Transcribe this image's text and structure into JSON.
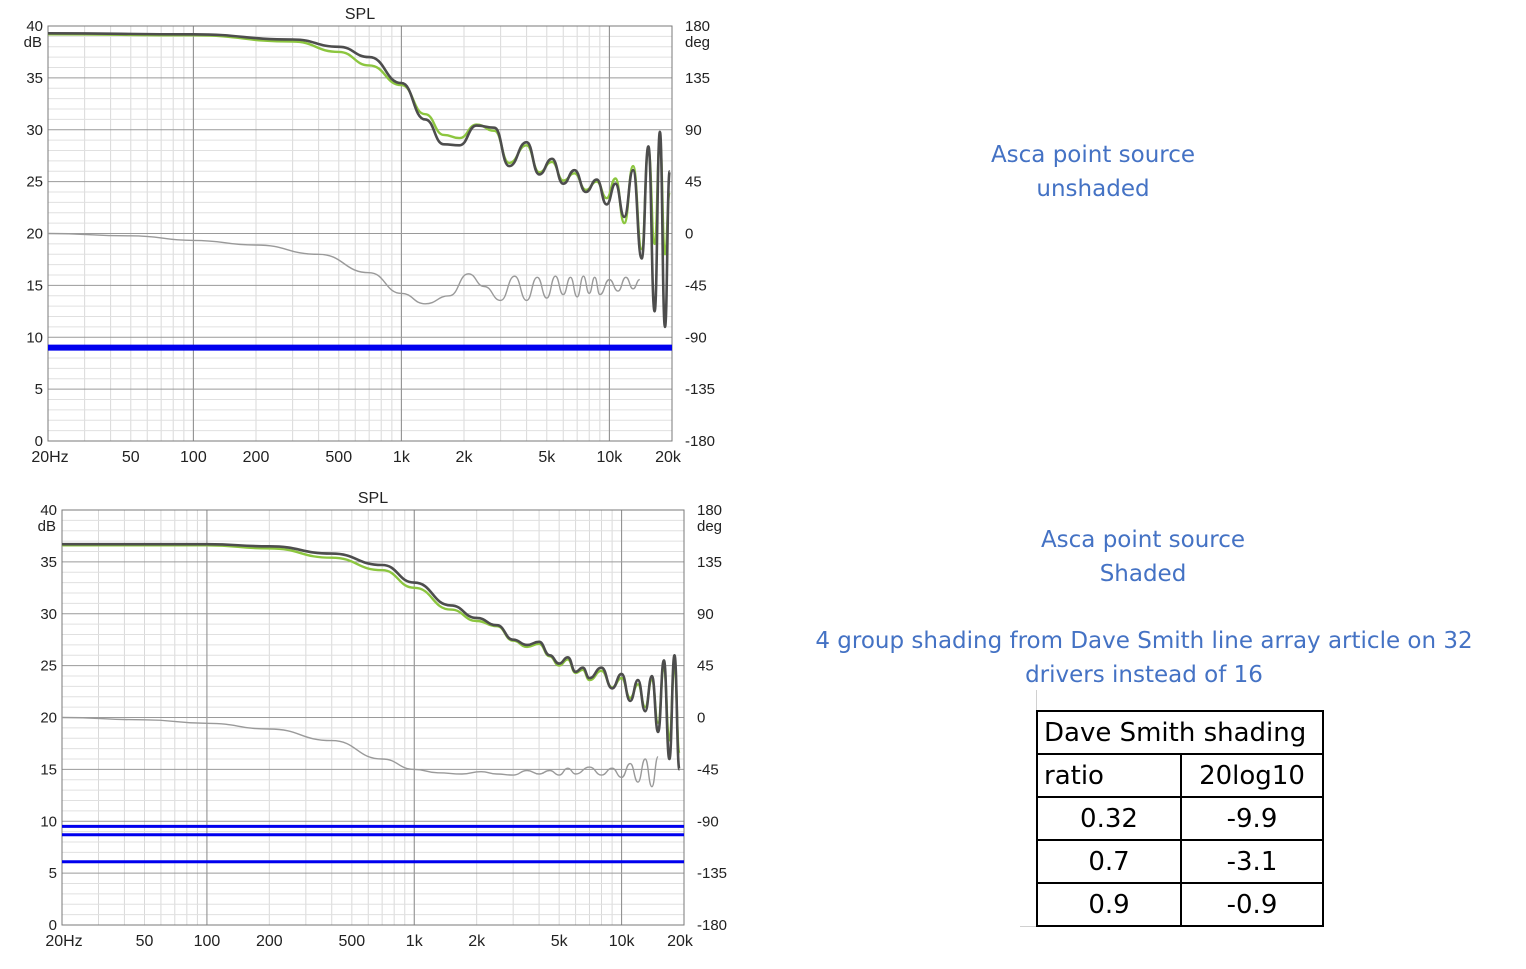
{
  "charts": [
    {
      "type": "line",
      "title": "SPL",
      "y_unit_left": "dB",
      "y_unit_right": "deg",
      "x_ticks": [
        "20Hz",
        "50",
        "100",
        "200",
        "500",
        "1k",
        "2k",
        "5k",
        "10k",
        "20k"
      ],
      "x_tick_values": [
        20,
        50,
        100,
        200,
        500,
        1000,
        2000,
        5000,
        10000,
        20000
      ],
      "y_ticks_left": [
        "0",
        "5",
        "10",
        "15",
        "20",
        "25",
        "30",
        "35",
        "40"
      ],
      "y_ticks_right": [
        "-180",
        "-135",
        "-90",
        "-45",
        "0",
        "45",
        "90",
        "135",
        "180"
      ],
      "xlim": [
        20,
        20000
      ],
      "ylim": [
        0,
        40
      ],
      "ylim_right": [
        -180,
        180
      ],
      "x_scale": "log",
      "grid": true,
      "colors": {
        "spl_main": "#4d4d4d",
        "spl_alt": "#8cc63f",
        "phase": "#9a9a9a",
        "band": "#0000ee"
      },
      "chart_data": {
        "type": "line",
        "series": [
          {
            "style": "spl_main",
            "x": [
              20,
              100,
              300,
              500,
              700,
              1000,
              1300,
              1600,
              1900,
              2300,
              2800,
              3300,
              4000,
              4600,
              5300,
              6000,
              6800,
              7700,
              8700,
              9700,
              10700,
              11800,
              13000,
              14300,
              15400,
              16500,
              17500,
              18500,
              19500
            ],
            "y": [
              39.3,
              39.2,
              38.7,
              38.0,
              37.0,
              34.5,
              31.0,
              28.6,
              28.5,
              30.4,
              30.2,
              26.5,
              28.8,
              25.7,
              27.2,
              24.8,
              26.1,
              24.0,
              25.2,
              22.8,
              24.8,
              21.6,
              26.1,
              17.6,
              28.4,
              12.5,
              29.8,
              11.0,
              26.0
            ]
          },
          {
            "style": "spl_alt",
            "x": [
              20,
              100,
              300,
              500,
              700,
              1000,
              1300,
              1600,
              1900,
              2300,
              2800,
              3300,
              4000,
              4600,
              5300,
              6000,
              6800,
              7700,
              8700,
              9700,
              10700,
              11800,
              13000,
              14300,
              15400,
              16500,
              17500,
              18500,
              19500
            ],
            "y": [
              39.2,
              39.1,
              38.5,
              37.5,
              36.2,
              34.3,
              31.5,
              29.5,
              29.2,
              30.5,
              29.9,
              26.8,
              28.5,
              25.9,
              26.9,
              25.1,
              25.8,
              24.2,
              25.0,
              23.4,
              25.3,
              21.0,
              26.5,
              18.5,
              28.0,
              19.0,
              28.8,
              18.0,
              24.0
            ]
          },
          {
            "style": "phase",
            "axis": "right",
            "x": [
              20,
              50,
              100,
              200,
              400,
              700,
              1000,
              1300,
              1700,
              2100,
              2500,
              3000,
              3500,
              4000,
              4500,
              5000,
              5500,
              6000,
              6500,
              7000,
              7500,
              8000,
              8500,
              9000,
              10000,
              11000,
              12000,
              13000,
              14000
            ],
            "y": [
              0,
              -2,
              -6,
              -10,
              -18,
              -34,
              -52,
              -61,
              -54,
              -35,
              -46,
              -58,
              -37,
              -58,
              -38,
              -56,
              -37,
              -53,
              -38,
              -55,
              -37,
              -52,
              -38,
              -53,
              -40,
              -50,
              -38,
              -48,
              -40
            ]
          },
          {
            "style": "band",
            "x": [
              20,
              20000
            ],
            "y": [
              9.0,
              9.0
            ]
          }
        ]
      }
    },
    {
      "type": "line",
      "title": "SPL",
      "y_unit_left": "dB",
      "y_unit_right": "deg",
      "x_ticks": [
        "20Hz",
        "50",
        "100",
        "200",
        "500",
        "1k",
        "2k",
        "5k",
        "10k",
        "20k"
      ],
      "x_tick_values": [
        20,
        50,
        100,
        200,
        500,
        1000,
        2000,
        5000,
        10000,
        20000
      ],
      "y_ticks_left": [
        "0",
        "5",
        "10",
        "15",
        "20",
        "25",
        "30",
        "35",
        "40"
      ],
      "y_ticks_right": [
        "-180",
        "-135",
        "-90",
        "-45",
        "0",
        "45",
        "90",
        "135",
        "180"
      ],
      "xlim": [
        20,
        20000
      ],
      "ylim": [
        0,
        40
      ],
      "ylim_right": [
        -180,
        180
      ],
      "x_scale": "log",
      "grid": true,
      "colors": {
        "spl_main": "#4d4d4d",
        "spl_alt": "#8cc63f",
        "phase": "#9a9a9a",
        "band": "#0000ee"
      },
      "chart_data": {
        "type": "line",
        "series": [
          {
            "style": "spl_main",
            "x": [
              20,
              100,
              200,
              400,
              700,
              1000,
              1500,
              2000,
              2500,
              3000,
              3500,
              4000,
              4500,
              5000,
              5500,
              6000,
              6500,
              7000,
              8000,
              9000,
              10000,
              11000,
              12000,
              13000,
              14000,
              15000,
              16000,
              17000,
              18000,
              19000
            ],
            "y": [
              36.7,
              36.7,
              36.5,
              35.8,
              34.7,
              33.0,
              30.8,
              29.6,
              28.9,
              27.5,
              27.0,
              27.3,
              26.0,
              25.2,
              25.8,
              24.4,
              24.8,
              23.8,
              24.8,
              22.8,
              24.2,
              21.6,
              23.6,
              20.6,
              24.0,
              18.6,
              25.5,
              16.0,
              26.0,
              15.0
            ]
          },
          {
            "style": "spl_alt",
            "x": [
              20,
              100,
              200,
              400,
              700,
              1000,
              1500,
              2000,
              2500,
              3000,
              3500,
              4000,
              4500,
              5000,
              5500,
              6000,
              6500,
              7000,
              8000,
              9000,
              10000,
              11000,
              12000,
              13000,
              14000,
              15000,
              16000,
              17000,
              18000,
              19000
            ],
            "y": [
              36.6,
              36.6,
              36.3,
              35.4,
              34.2,
              32.5,
              30.4,
              29.3,
              28.8,
              27.4,
              26.8,
              27.1,
              25.9,
              25.0,
              25.6,
              24.3,
              24.6,
              23.6,
              24.5,
              22.9,
              23.8,
              21.9,
              23.2,
              21.0,
              23.6,
              19.5,
              24.8,
              17.8,
              25.0,
              16.5
            ]
          },
          {
            "style": "phase",
            "axis": "right",
            "x": [
              20,
              50,
              100,
              200,
              400,
              700,
              1000,
              1300,
              1700,
              2100,
              2500,
              3000,
              3500,
              4000,
              4500,
              5000,
              5500,
              6000,
              7000,
              8000,
              9000,
              10000,
              11000,
              12000,
              13000,
              14000,
              15000
            ],
            "y": [
              0,
              -2,
              -5,
              -10,
              -20,
              -36,
              -45,
              -48,
              -49,
              -47,
              -49,
              -50,
              -46,
              -49,
              -46,
              -50,
              -44,
              -49,
              -43,
              -50,
              -44,
              -52,
              -40,
              -56,
              -36,
              -60,
              -34
            ]
          },
          {
            "style": "band",
            "x": [
              20,
              20000
            ],
            "y": [
              9.5,
              9.5
            ]
          },
          {
            "style": "band",
            "x": [
              20,
              20000
            ],
            "y": [
              8.7,
              8.7
            ]
          },
          {
            "style": "band",
            "x": [
              20,
              20000
            ],
            "y": [
              6.1,
              6.1
            ]
          }
        ]
      }
    }
  ],
  "captions": {
    "top": [
      "Asca point source",
      "unshaded"
    ],
    "bottom": [
      "Asca point source",
      "Shaded"
    ],
    "note": "4 group shading from Dave Smith line array article on 32 drivers instead of 16"
  },
  "table": {
    "title": "Dave Smith shading",
    "headers": [
      "ratio",
      "20log10"
    ],
    "rows": [
      [
        "0.32",
        "-9.9"
      ],
      [
        "0.7",
        "-3.1"
      ],
      [
        "0.9",
        "-0.9"
      ]
    ]
  }
}
